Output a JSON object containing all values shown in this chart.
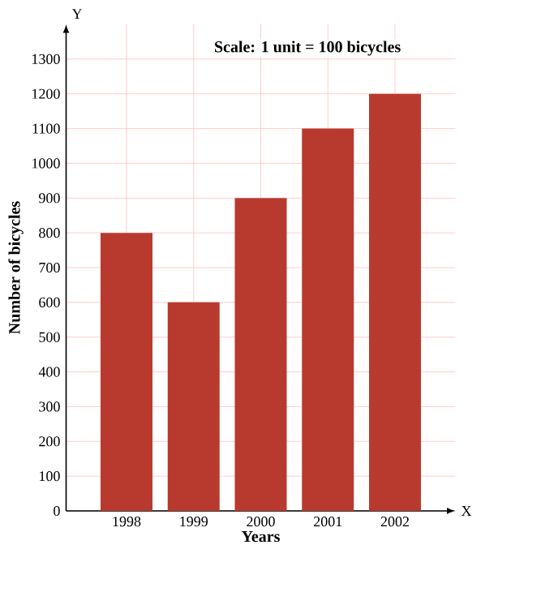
{
  "chart_data": {
    "type": "bar",
    "title": "Scale: 1 unit = 100 bicycles",
    "xlabel": "Years",
    "ylabel": "Number of bicycles",
    "categories": [
      "1998",
      "1999",
      "2000",
      "2001",
      "2002"
    ],
    "values": [
      800,
      600,
      900,
      1100,
      1200
    ],
    "color": "#b83a2e",
    "ylim": [
      0,
      1400
    ],
    "yticks": [
      0,
      100,
      200,
      300,
      400,
      500,
      600,
      700,
      800,
      900,
      1000,
      1100,
      1200,
      1300
    ],
    "grid": true,
    "annotations": [
      "X",
      "Y"
    ]
  }
}
